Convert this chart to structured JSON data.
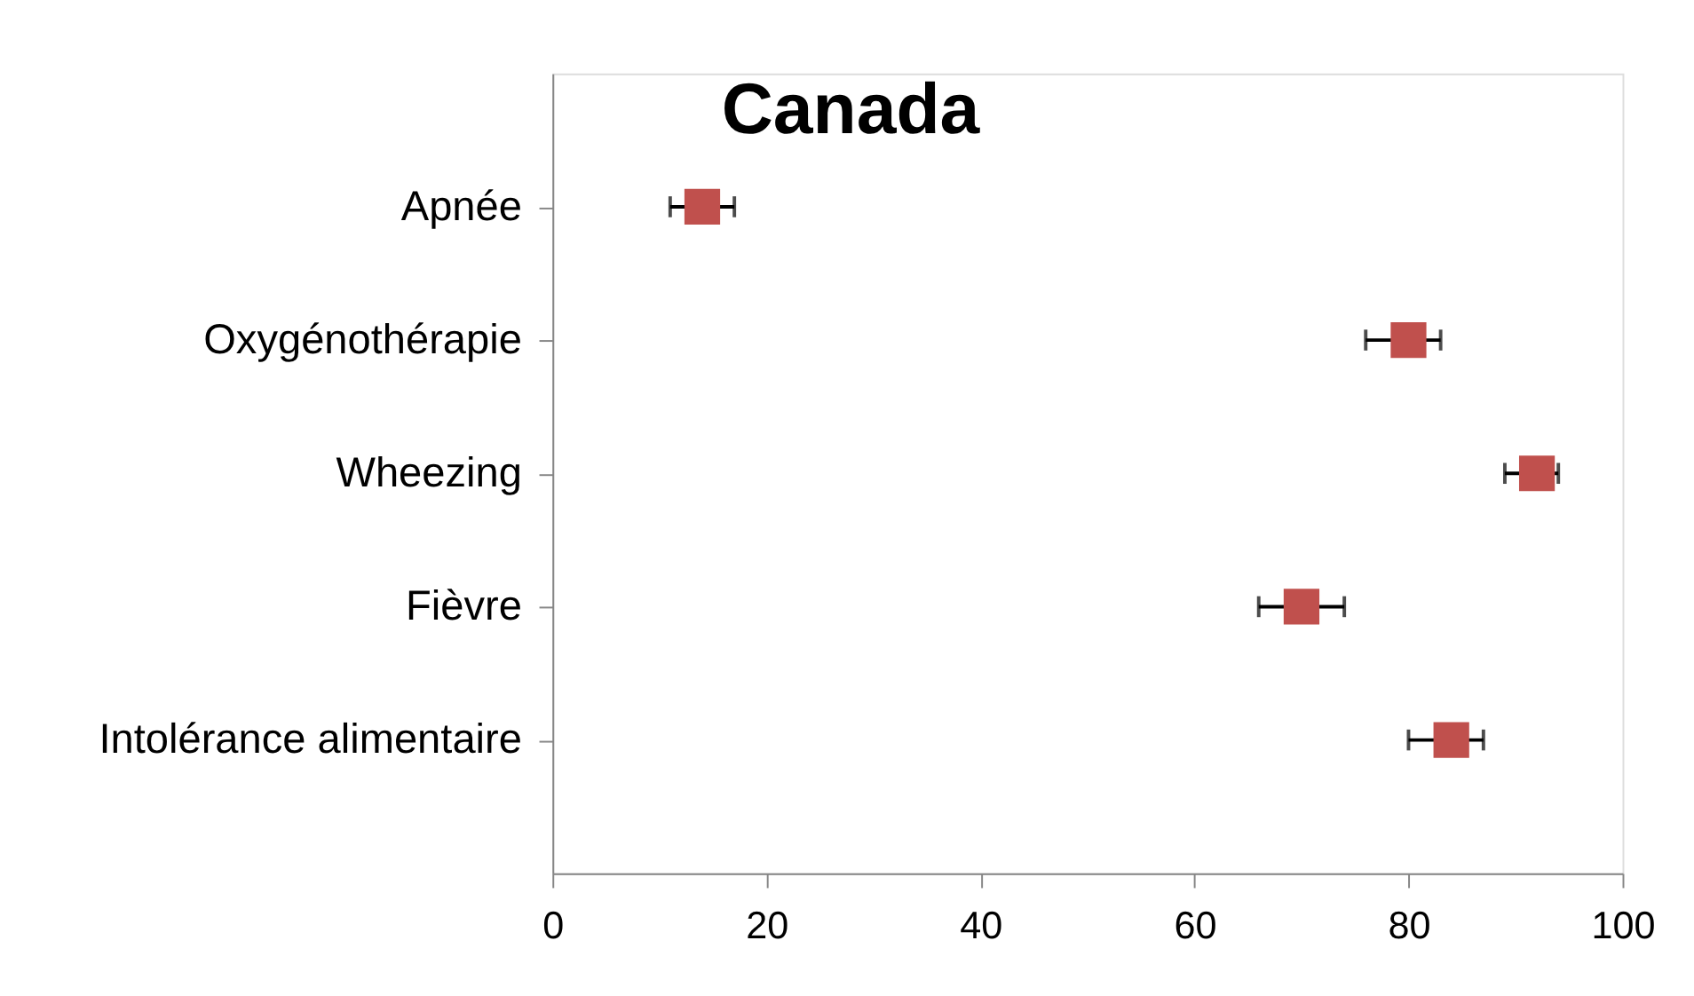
{
  "chart_data": {
    "type": "scatter",
    "title": "Canada",
    "orientation": "horizontal",
    "categories": [
      "Apnée",
      "Oxygénothérapie",
      "Wheezing",
      "Fièvre",
      "Intolérance alimentaire"
    ],
    "series": [
      {
        "color": "#c0504d",
        "values": [
          14,
          80,
          92,
          70,
          84
        ],
        "errors": [
          [
            11,
            17
          ],
          [
            76,
            83
          ],
          [
            89,
            94
          ],
          [
            66,
            74
          ],
          [
            80,
            87
          ]
        ]
      }
    ],
    "xlim": [
      0,
      100
    ],
    "xticks": [
      0,
      20,
      40,
      60,
      80,
      100
    ],
    "marker": "square",
    "grid": false,
    "legend": false
  }
}
